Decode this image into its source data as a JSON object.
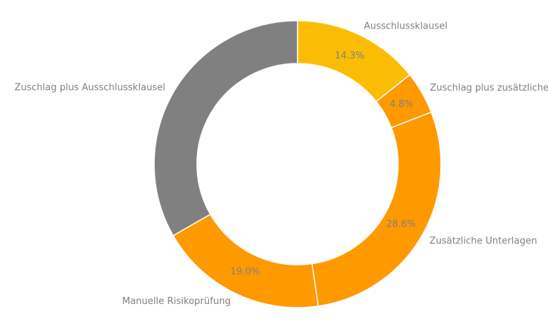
{
  "chart_data": {
    "type": "pie",
    "donut": true,
    "title": "",
    "start_angle_deg": 90,
    "direction": "clockwise",
    "slices": [
      {
        "label": "Ausschlussklausel",
        "value": 14.3,
        "pct_label": "14.3%",
        "color": "#FBBC05"
      },
      {
        "label": "Zuschlag plus zusätzliche Unterlagen",
        "value": 4.8,
        "pct_label": "4.8%",
        "color": "#FF9900"
      },
      {
        "label": "Zusätzliche Unterlagen",
        "value": 28.6,
        "pct_label": "28.6%",
        "color": "#FF9900"
      },
      {
        "label": "Manuelle Risikoprüfung",
        "value": 19.0,
        "pct_label": "19.0%",
        "color": "#FF9900"
      },
      {
        "label": "Zuschlag plus Ausschlussklausel",
        "value": 33.3,
        "pct_label": "33.3%",
        "color": "#808080"
      }
    ],
    "text_color": "#808080",
    "edge_color": "#ffffff",
    "legend": "none"
  }
}
